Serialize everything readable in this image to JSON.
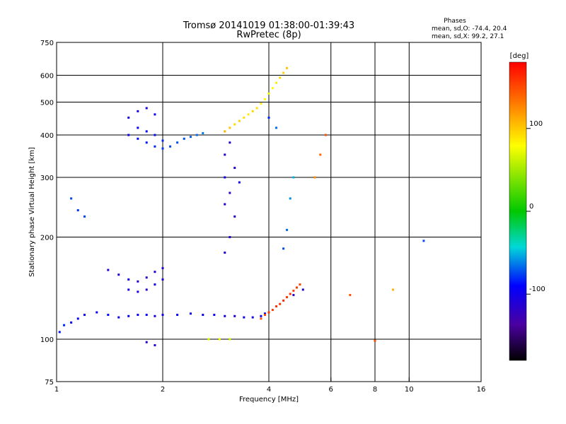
{
  "title": "Tromsø 20141019 01:38:00-01:39:43",
  "subtitle": "RwPretec (8p)",
  "stats": {
    "heading": "Phases",
    "line_o": "mean, sd,O: -74.4, 20.4",
    "line_x": "mean, sd,X:  99.2, 27.1"
  },
  "chart_data": {
    "type": "scatter",
    "xlabel": "Frequency [MHz]",
    "ylabel": "Stationary phase Virtual Height [km]",
    "x_scale": "log",
    "y_scale": "log",
    "xlim": [
      1,
      16
    ],
    "ylim": [
      75,
      750
    ],
    "x_ticks": [
      1,
      2,
      4,
      6,
      8,
      10,
      16
    ],
    "y_ticks": [
      75,
      100,
      200,
      300,
      400,
      500,
      600,
      750
    ],
    "grid": true,
    "colorbar": {
      "label": "[deg]",
      "range": [
        -180,
        180
      ],
      "ticks": [
        100,
        0,
        -100
      ],
      "colormap": "rainbow"
    },
    "series": [
      {
        "points": [
          [
            1.02,
            105,
            -85
          ],
          [
            1.05,
            110,
            -80
          ],
          [
            1.1,
            112,
            -90
          ],
          [
            1.15,
            115,
            -95
          ],
          [
            1.2,
            118,
            -100
          ],
          [
            1.3,
            120,
            -92
          ],
          [
            1.4,
            118,
            -88
          ],
          [
            1.5,
            116,
            -95
          ],
          [
            1.6,
            117,
            -90
          ],
          [
            1.7,
            118,
            -97
          ],
          [
            1.8,
            118,
            -93
          ],
          [
            1.9,
            117,
            -100
          ],
          [
            2.0,
            118,
            -98
          ],
          [
            2.2,
            118,
            -95
          ],
          [
            2.4,
            119,
            -100
          ],
          [
            2.6,
            118,
            -98
          ],
          [
            2.8,
            118,
            -96
          ],
          [
            3.0,
            117,
            -100
          ],
          [
            3.2,
            117,
            -102
          ],
          [
            3.4,
            116,
            -98
          ],
          [
            3.6,
            116,
            -100
          ],
          [
            3.8,
            117,
            -95
          ],
          [
            3.9,
            119,
            -90
          ]
        ]
      },
      {
        "points": [
          [
            1.4,
            160,
            -110
          ],
          [
            1.5,
            155,
            -105
          ],
          [
            1.6,
            150,
            -100
          ],
          [
            1.7,
            148,
            -110
          ],
          [
            1.8,
            152,
            -115
          ],
          [
            1.9,
            158,
            -105
          ],
          [
            2.0,
            162,
            -110
          ],
          [
            1.6,
            140,
            -100
          ],
          [
            1.7,
            138,
            -105
          ],
          [
            1.8,
            140,
            -110
          ],
          [
            1.9,
            145,
            -100
          ],
          [
            2.0,
            150,
            -105
          ]
        ]
      },
      {
        "points": [
          [
            1.6,
            400,
            -95
          ],
          [
            1.7,
            390,
            -90
          ],
          [
            1.8,
            380,
            -85
          ],
          [
            1.9,
            370,
            -80
          ],
          [
            2.0,
            365,
            -75
          ],
          [
            2.1,
            370,
            -70
          ],
          [
            2.2,
            380,
            -70
          ],
          [
            2.3,
            390,
            -68
          ],
          [
            2.4,
            395,
            -65
          ],
          [
            2.5,
            400,
            -60
          ],
          [
            2.6,
            405,
            -55
          ],
          [
            1.7,
            420,
            -95
          ],
          [
            1.8,
            410,
            -92
          ],
          [
            1.9,
            400,
            -88
          ],
          [
            2.0,
            385,
            -80
          ],
          [
            1.6,
            450,
            -100
          ],
          [
            1.7,
            470,
            -105
          ],
          [
            1.8,
            480,
            -100
          ],
          [
            1.9,
            460,
            -98
          ]
        ]
      },
      {
        "points": [
          [
            3.0,
            410,
            120
          ],
          [
            3.1,
            420,
            115
          ],
          [
            3.2,
            430,
            110
          ],
          [
            3.3,
            440,
            112
          ],
          [
            3.4,
            450,
            108
          ],
          [
            3.5,
            460,
            105
          ],
          [
            3.6,
            470,
            110
          ],
          [
            3.7,
            480,
            108
          ],
          [
            3.8,
            495,
            105
          ],
          [
            3.9,
            510,
            100
          ],
          [
            4.0,
            530,
            95
          ],
          [
            4.1,
            550,
            100
          ],
          [
            4.2,
            570,
            105
          ],
          [
            4.3,
            590,
            110
          ],
          [
            4.4,
            610,
            112
          ],
          [
            4.5,
            630,
            115
          ]
        ]
      },
      {
        "points": [
          [
            3.8,
            115,
            150
          ],
          [
            3.9,
            118,
            155
          ],
          [
            4.0,
            120,
            160
          ],
          [
            4.1,
            122,
            158
          ],
          [
            4.2,
            125,
            162
          ],
          [
            4.3,
            127,
            160
          ],
          [
            4.4,
            130,
            165
          ],
          [
            4.5,
            133,
            160
          ],
          [
            4.6,
            136,
            162
          ],
          [
            4.7,
            139,
            158
          ],
          [
            4.8,
            142,
            160
          ],
          [
            4.9,
            145,
            155
          ]
        ]
      },
      {
        "points": [
          [
            3.0,
            250,
            -105
          ],
          [
            3.0,
            300,
            -100
          ],
          [
            3.0,
            350,
            -110
          ],
          [
            3.1,
            270,
            -115
          ],
          [
            3.2,
            320,
            -108
          ],
          [
            3.1,
            380,
            -112
          ],
          [
            3.2,
            230,
            -110
          ],
          [
            3.3,
            290,
            -100
          ],
          [
            3.1,
            200,
            -105
          ],
          [
            3.0,
            180,
            -110
          ]
        ]
      },
      {
        "points": [
          [
            2.7,
            100,
            90
          ],
          [
            2.9,
            100,
            95
          ],
          [
            3.1,
            100,
            85
          ],
          [
            1.8,
            98,
            -110
          ],
          [
            1.9,
            96,
            -105
          ],
          [
            4.4,
            185,
            -70
          ],
          [
            4.5,
            210,
            -60
          ],
          [
            4.6,
            260,
            -50
          ],
          [
            4.7,
            300,
            -40
          ],
          [
            5.4,
            300,
            130
          ],
          [
            5.6,
            350,
            140
          ],
          [
            5.8,
            400,
            150
          ],
          [
            1.1,
            260,
            -70
          ],
          [
            1.15,
            240,
            -75
          ],
          [
            1.2,
            230,
            -72
          ],
          [
            4.7,
            135,
            -115
          ],
          [
            5.0,
            140,
            -110
          ],
          [
            6.8,
            135,
            150
          ],
          [
            8.0,
            99,
            150
          ],
          [
            11.0,
            195,
            -70
          ],
          [
            9.0,
            140,
            120
          ],
          [
            4.2,
            420,
            -60
          ],
          [
            4.0,
            450,
            -80
          ]
        ]
      }
    ]
  }
}
